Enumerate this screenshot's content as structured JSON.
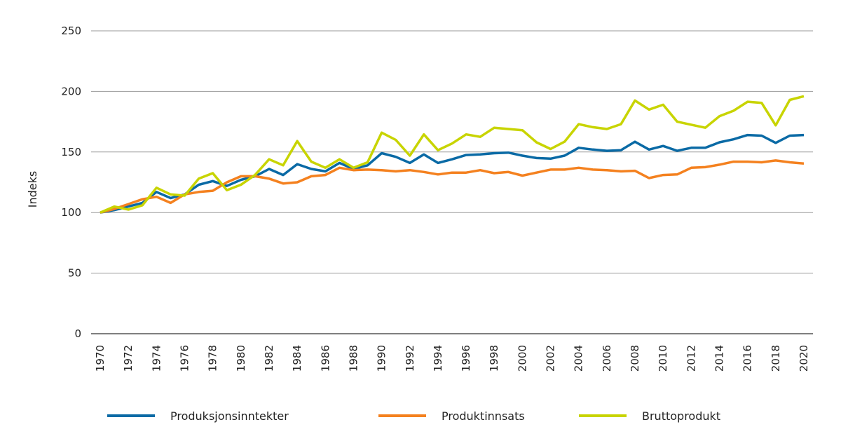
{
  "chart_data": {
    "type": "line",
    "title": "",
    "xlabel": "",
    "ylabel": "Indeks",
    "ylim": [
      0,
      250
    ],
    "yticks": [
      0,
      50,
      100,
      150,
      200,
      250
    ],
    "xticks": [
      "1970",
      "1972",
      "1974",
      "1976",
      "1978",
      "1980",
      "1982",
      "1984",
      "1986",
      "1988",
      "1990",
      "1992",
      "1994",
      "1996",
      "1998",
      "2000",
      "2002",
      "2004",
      "2006",
      "2008",
      "2010",
      "2012",
      "2014",
      "2016",
      "2018",
      "2020"
    ],
    "grid": "horizontal",
    "legend": "bottom",
    "x": [
      1970,
      1971,
      1972,
      1973,
      1974,
      1975,
      1976,
      1977,
      1978,
      1979,
      1980,
      1981,
      1982,
      1983,
      1984,
      1985,
      1986,
      1987,
      1988,
      1989,
      1990,
      1991,
      1992,
      1993,
      1994,
      1995,
      1996,
      1997,
      1998,
      1999,
      2000,
      2001,
      2002,
      2003,
      2004,
      2005,
      2006,
      2007,
      2008,
      2009,
      2010,
      2011,
      2012,
      2013,
      2014,
      2015,
      2016,
      2017,
      2018,
      2019,
      2020
    ],
    "series": [
      {
        "name": "Produksjonsinntekter",
        "color": "#0a6aa5",
        "values": [
          100,
          102,
          105,
          108,
          117,
          112,
          115,
          123,
          126,
          122,
          127,
          130,
          136,
          131,
          140,
          136,
          134,
          141,
          136,
          139,
          149,
          146,
          141,
          148,
          141,
          144,
          147.5,
          148,
          149,
          149.5,
          147,
          145,
          144.5,
          147,
          153.5,
          152,
          151,
          151.5,
          158.5,
          152,
          155,
          151,
          153.5,
          153.5,
          158,
          160.5,
          164,
          163.5,
          157.5,
          163.5,
          164
        ]
      },
      {
        "name": "Produktinnsats",
        "color": "#f4811f",
        "values": [
          100,
          103,
          107,
          111,
          113,
          108,
          115,
          117,
          118,
          125,
          130,
          130,
          128,
          124,
          125,
          130,
          131,
          137,
          135,
          135.5,
          135,
          134,
          135,
          133.5,
          131.5,
          133,
          133,
          135,
          132.5,
          133.5,
          130.5,
          133,
          135.5,
          135.5,
          137,
          135.5,
          135,
          134,
          134.5,
          128.5,
          131,
          131.5,
          137,
          137.5,
          139.5,
          142,
          142,
          141.5,
          143,
          141.5,
          140.5
        ]
      },
      {
        "name": "Bruttoprodukt",
        "color": "#c8d400",
        "values": [
          100,
          105,
          102.5,
          106,
          120.5,
          115,
          114,
          128,
          132.5,
          118.5,
          123,
          131,
          144,
          139,
          159,
          142,
          137,
          144,
          137,
          141.5,
          166,
          160,
          147,
          164.5,
          151.5,
          157,
          164.5,
          162.5,
          170,
          169,
          168,
          158,
          152.5,
          158.5,
          173,
          170.5,
          169,
          173,
          192.5,
          185,
          189,
          175,
          172.5,
          170,
          179.5,
          184,
          191.5,
          190.5,
          172,
          193,
          196
        ]
      }
    ]
  }
}
